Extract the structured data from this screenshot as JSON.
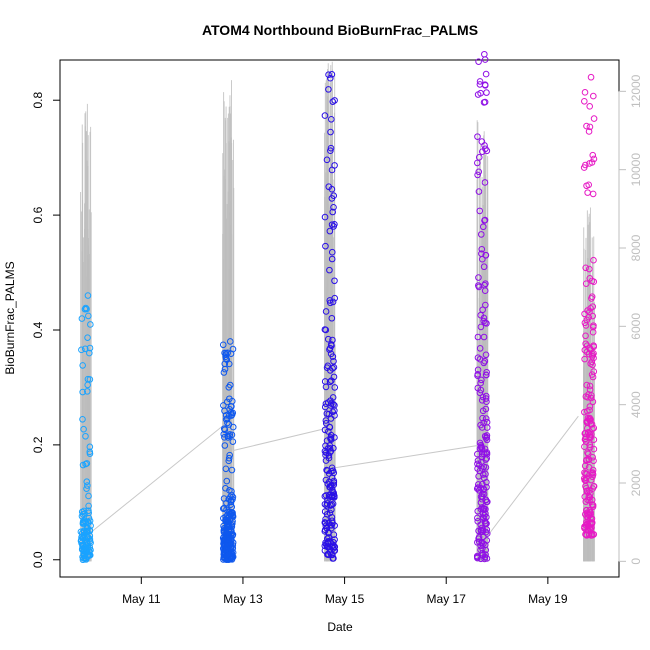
{
  "chart_data": {
    "type": "scatter",
    "title": "ATOM4 Northbound BioBurnFrac_PALMS",
    "xlabel": "Date",
    "ylabel": "BioBurnFrac_PALMS",
    "x_ticks": [
      "May 11",
      "May 13",
      "May 15",
      "May 17",
      "May 19"
    ],
    "xlim_days": [
      9.4,
      20.4
    ],
    "ylim": [
      -0.03,
      0.87
    ],
    "y_ticks": [
      0.0,
      0.2,
      0.4,
      0.6,
      0.8
    ],
    "y2_ticks": [
      0,
      2000,
      4000,
      6000,
      8000,
      10000,
      12000
    ],
    "y2lim": [
      -400,
      12800
    ],
    "colors": {
      "flight1": "#1aa3ff",
      "flight2": "#0f58ee",
      "flight3": "#2a10e6",
      "flight4": "#8f10e6",
      "flight5": "#e61ac5",
      "altitude": "#bdbdbd",
      "track": "#c8c8c8"
    },
    "flights": [
      {
        "day": 9.9,
        "bio_burn_min": 0.0,
        "bio_burn_max": 0.46,
        "bio_burn_median": 0.06,
        "altitude_max": 11700
      },
      {
        "day": 12.7,
        "bio_burn_min": 0.0,
        "bio_burn_max": 0.38,
        "bio_burn_median": 0.07,
        "altitude_max": 12300
      },
      {
        "day": 14.7,
        "bio_burn_min": 0.0,
        "bio_burn_max": 0.845,
        "bio_burn_median": 0.3,
        "altitude_max": 12800
      },
      {
        "day": 17.7,
        "bio_burn_min": 0.0,
        "bio_burn_max": 0.88,
        "bio_burn_median": 0.3,
        "altitude_max": 11300
      },
      {
        "day": 19.8,
        "bio_burn_min": 0.04,
        "bio_burn_max": 0.84,
        "bio_burn_median": 0.3,
        "altitude_max": 9100
      }
    ],
    "mean_track": [
      {
        "day": 9.9,
        "value": 0.04
      },
      {
        "day": 12.7,
        "value": 0.24
      },
      {
        "day": 12.8,
        "value": 0.19
      },
      {
        "day": 14.7,
        "value": 0.23
      },
      {
        "day": 14.8,
        "value": 0.16
      },
      {
        "day": 17.7,
        "value": 0.2
      },
      {
        "day": 17.8,
        "value": 0.04
      },
      {
        "day": 19.6,
        "value": 0.25
      }
    ]
  }
}
